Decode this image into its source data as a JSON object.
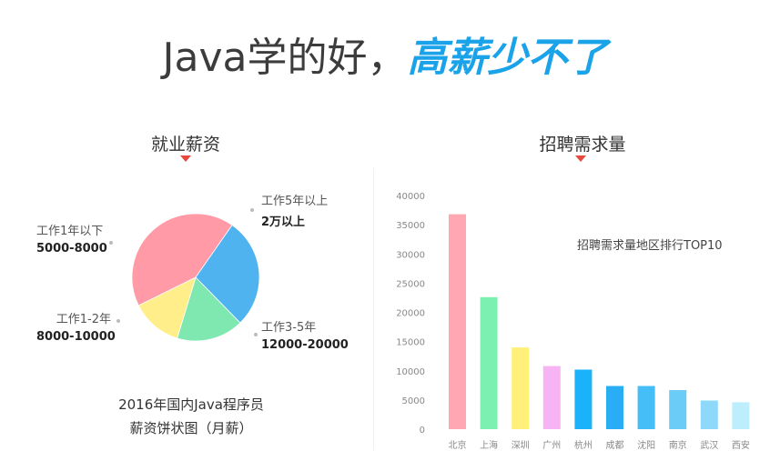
{
  "headline": {
    "plain": "Java学的好，",
    "accent": "高薪少不了"
  },
  "pie_section": {
    "title": "就业薪资",
    "caption_line1": "2016年国内Java程序员",
    "caption_line2": "薪资饼状图（月薪）",
    "labels": [
      {
        "title": "工作5年以上",
        "value": "2万以上"
      },
      {
        "title": "工作3-5年",
        "value": "12000-20000"
      },
      {
        "title": "工作1-2年",
        "value": "8000-10000"
      },
      {
        "title": "工作1年以下",
        "value": "5000-8000"
      }
    ]
  },
  "bar_section": {
    "title": "招聘需求量",
    "annotation": "招聘需求量地区排行TOP10"
  },
  "chart_data": [
    {
      "type": "pie",
      "labels": [
        "工作5年以上",
        "工作3-5年",
        "工作1-2年",
        "工作1年以下"
      ],
      "values": [
        42,
        28,
        17,
        13
      ],
      "colors": [
        "#ff9aa6",
        "#4fb3f0",
        "#7ee8b0",
        "#ffee8a"
      ]
    },
    {
      "type": "bar",
      "categories": [
        "北京",
        "上海",
        "深圳",
        "广州",
        "杭州",
        "成都",
        "沈阳",
        "南京",
        "武汉",
        "西安"
      ],
      "values": [
        36800,
        22600,
        14000,
        10800,
        10200,
        7400,
        7400,
        6700,
        4900,
        4600
      ],
      "colors": [
        "#ffa8b4",
        "#7cf0b0",
        "#fff07a",
        "#f6b4f4",
        "#1ab2f8",
        "#29aef6",
        "#45bef8",
        "#6cccf8",
        "#8ed8fa",
        "#bceefc"
      ],
      "yticks": [
        0,
        5000,
        10000,
        15000,
        20000,
        25000,
        30000,
        35000,
        40000
      ],
      "ylim": [
        0,
        40000
      ],
      "grid": false
    }
  ]
}
